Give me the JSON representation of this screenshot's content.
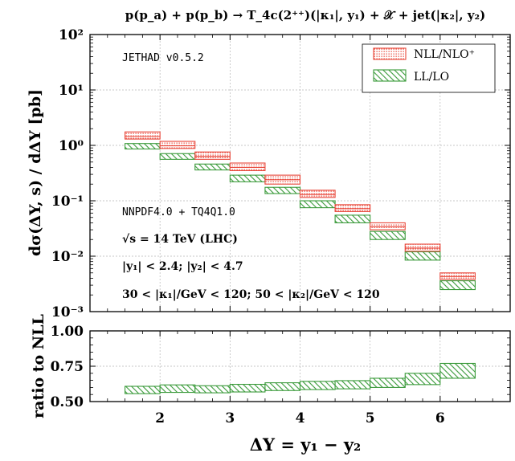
{
  "title": "p(p_a) + p(p_b) → T_4c(2⁺⁺)(|κ₁|, y₁) + 𝒳 + jet(|κ₂|, y₂)",
  "legend": {
    "nll": "NLL/NLO⁺",
    "ll": "LL/LO"
  },
  "annotations": {
    "code": "JETHAD v0.5.2",
    "pdf": "NNPDF4.0 + TQ4Q1.0",
    "energy": "√s = 14 TeV (LHC)",
    "rapidity": "|y₁| < 2.4;  |y₂| < 4.7",
    "kappa": "30 < |κ₁|/GeV < 120;  50 < |κ₂|/GeV < 120"
  },
  "colors": {
    "nll": "#e8473a",
    "ll": "#3a9a3a"
  },
  "chart_data": [
    {
      "type": "bar",
      "panel": "main",
      "ylabel": "dσ(ΔY, s) / dΔY [pb]",
      "yscale": "log",
      "ylim": [
        0.001,
        100
      ],
      "xlim": [
        1.0,
        7.0
      ],
      "grid": true,
      "legend_position": "top-right",
      "y_tick_labels": [
        "10⁻³",
        "10⁻²",
        "10⁻¹",
        "10⁰",
        "10¹",
        "10²"
      ],
      "y_tick_values": [
        0.001,
        0.01,
        0.1,
        1,
        10,
        100
      ],
      "bin_edges": [
        1.5,
        2.0,
        2.5,
        3.0,
        3.5,
        4.0,
        4.5,
        5.0,
        5.5,
        6.0,
        6.5
      ],
      "series": [
        {
          "name": "NLL/NLO⁺",
          "central": [
            1.45,
            0.98,
            0.63,
            0.4,
            0.24,
            0.13,
            0.072,
            0.034,
            0.014,
            0.0043
          ],
          "low": [
            1.3,
            0.88,
            0.56,
            0.35,
            0.2,
            0.115,
            0.064,
            0.03,
            0.0123,
            0.0038
          ],
          "high": [
            1.75,
            1.18,
            0.76,
            0.48,
            0.29,
            0.155,
            0.085,
            0.04,
            0.0165,
            0.005
          ]
        },
        {
          "name": "LL/LO",
          "low": [
            0.86,
            0.56,
            0.36,
            0.22,
            0.135,
            0.075,
            0.04,
            0.02,
            0.0085,
            0.0025
          ],
          "high": [
            1.08,
            0.71,
            0.46,
            0.29,
            0.175,
            0.1,
            0.055,
            0.028,
            0.012,
            0.0036
          ]
        }
      ]
    },
    {
      "type": "bar",
      "panel": "ratio",
      "ylabel": "ratio to NLL",
      "xlabel": "ΔY = y₁ − y₂",
      "ylim": [
        0.5,
        1.0
      ],
      "xlim": [
        1.0,
        7.0
      ],
      "grid": true,
      "y_ticks": [
        0.5,
        0.75,
        1.0
      ],
      "y_tick_labels": [
        "0.50",
        "0.75",
        "1.00"
      ],
      "x_ticks": [
        2,
        3,
        4,
        5,
        6
      ],
      "x_tick_labels": [
        "2",
        "3",
        "4",
        "5",
        "6"
      ],
      "bin_edges": [
        1.5,
        2.0,
        2.5,
        3.0,
        3.5,
        4.0,
        4.5,
        5.0,
        5.5,
        6.0,
        6.5
      ],
      "series": [
        {
          "name": "LL/LO",
          "low": [
            0.556,
            0.565,
            0.562,
            0.568,
            0.578,
            0.585,
            0.59,
            0.6,
            0.62,
            0.665
          ],
          "high": [
            0.608,
            0.618,
            0.612,
            0.622,
            0.633,
            0.643,
            0.648,
            0.665,
            0.7,
            0.77
          ]
        }
      ]
    }
  ]
}
